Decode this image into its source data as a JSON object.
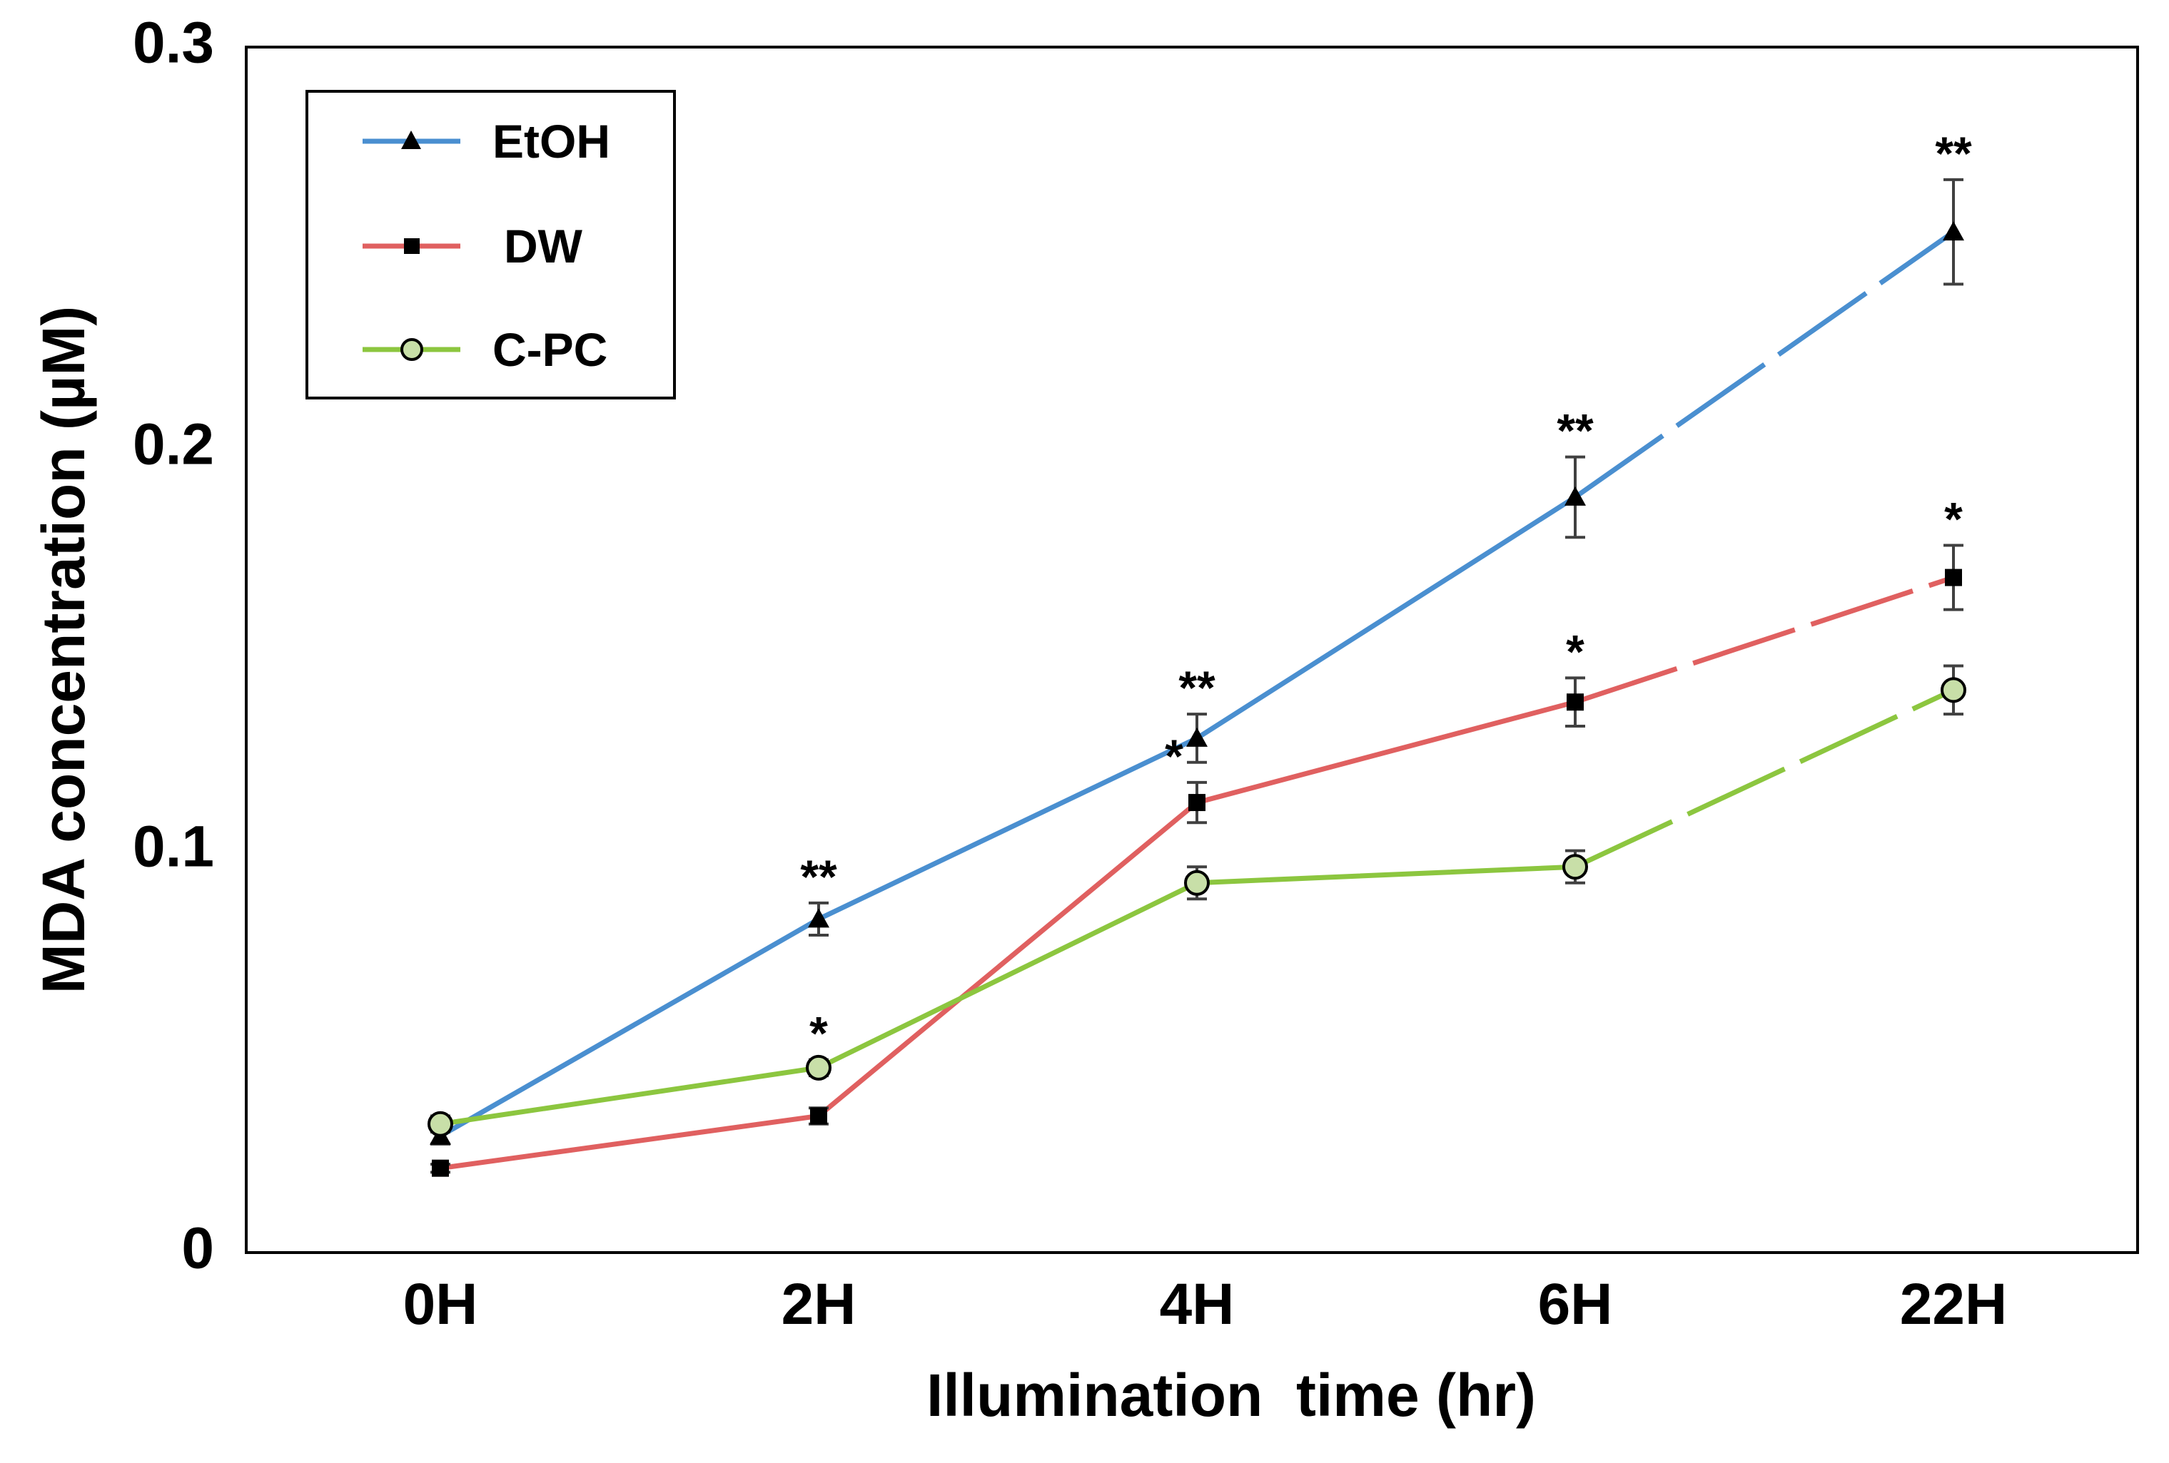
{
  "chart_data": {
    "type": "line",
    "title": "",
    "xlabel": "Illumination  time (hr)",
    "ylabel": "MDA concentration (µM)",
    "categories": [
      "0H",
      "2H",
      "4H",
      "6H",
      "22H"
    ],
    "ylim": [
      0,
      0.3
    ],
    "yticks": [
      "0",
      "0.1",
      "0.2",
      "0.3"
    ],
    "grid": false,
    "legend_position": "top-left",
    "series": [
      {
        "name": "EtOH",
        "color": "#4a8fd0",
        "marker": "triangle",
        "values": [
          0.029,
          0.083,
          0.128,
          0.188,
          0.254
        ],
        "errors": [
          0.002,
          0.004,
          0.006,
          0.01,
          0.013
        ],
        "significance": [
          "",
          "**",
          "**",
          "**",
          "**"
        ],
        "dashed_last_segment": true
      },
      {
        "name": "DW",
        "color": "#e06060",
        "marker": "square",
        "values": [
          0.021,
          0.034,
          0.112,
          0.137,
          0.168
        ],
        "errors": [
          0.001,
          0.002,
          0.005,
          0.006,
          0.008
        ],
        "significance": [
          "",
          "",
          "*",
          "*",
          "*"
        ],
        "dashed_last_segment": true
      },
      {
        "name": "C-PC",
        "color": "#8cc63f",
        "marker": "circle-open",
        "values": [
          0.032,
          0.046,
          0.092,
          0.096,
          0.14
        ],
        "errors": [
          0.002,
          0.002,
          0.004,
          0.004,
          0.006
        ],
        "significance": [
          "",
          "*",
          "",
          "",
          ""
        ],
        "dashed_last_segment": true
      }
    ]
  }
}
